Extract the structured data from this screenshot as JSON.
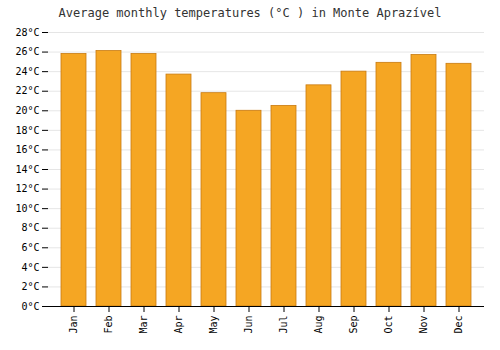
{
  "chart_data": {
    "type": "bar",
    "title": "Average monthly temperatures (°C ) in Monte Aprazível",
    "categories": [
      "Jan",
      "Feb",
      "Mar",
      "Apr",
      "May",
      "Jun",
      "Jul",
      "Aug",
      "Sep",
      "Oct",
      "Nov",
      "Dec"
    ],
    "values": [
      25.8,
      26.1,
      25.8,
      23.7,
      21.8,
      20.0,
      20.5,
      22.6,
      24.0,
      24.9,
      25.7,
      24.8
    ],
    "color": "#F5A623",
    "ylim": [
      0,
      28
    ],
    "yticks": [
      {
        "value": 0,
        "label": "0°C"
      },
      {
        "value": 2,
        "label": "2°C"
      },
      {
        "value": 4,
        "label": "4°C"
      },
      {
        "value": 6,
        "label": "6°C"
      },
      {
        "value": 8,
        "label": "8°C"
      },
      {
        "value": 10,
        "label": "10°C"
      },
      {
        "value": 12,
        "label": "12°C"
      },
      {
        "value": 14,
        "label": "14°C"
      },
      {
        "value": 16,
        "label": "16°C"
      },
      {
        "value": 18,
        "label": "18°C"
      },
      {
        "value": 20,
        "label": "20°C"
      },
      {
        "value": 22,
        "label": "22°C"
      },
      {
        "value": 24,
        "label": "24°C"
      },
      {
        "value": 26,
        "label": "26°C"
      },
      {
        "value": 28,
        "label": "28°C"
      }
    ],
    "grid": true
  }
}
